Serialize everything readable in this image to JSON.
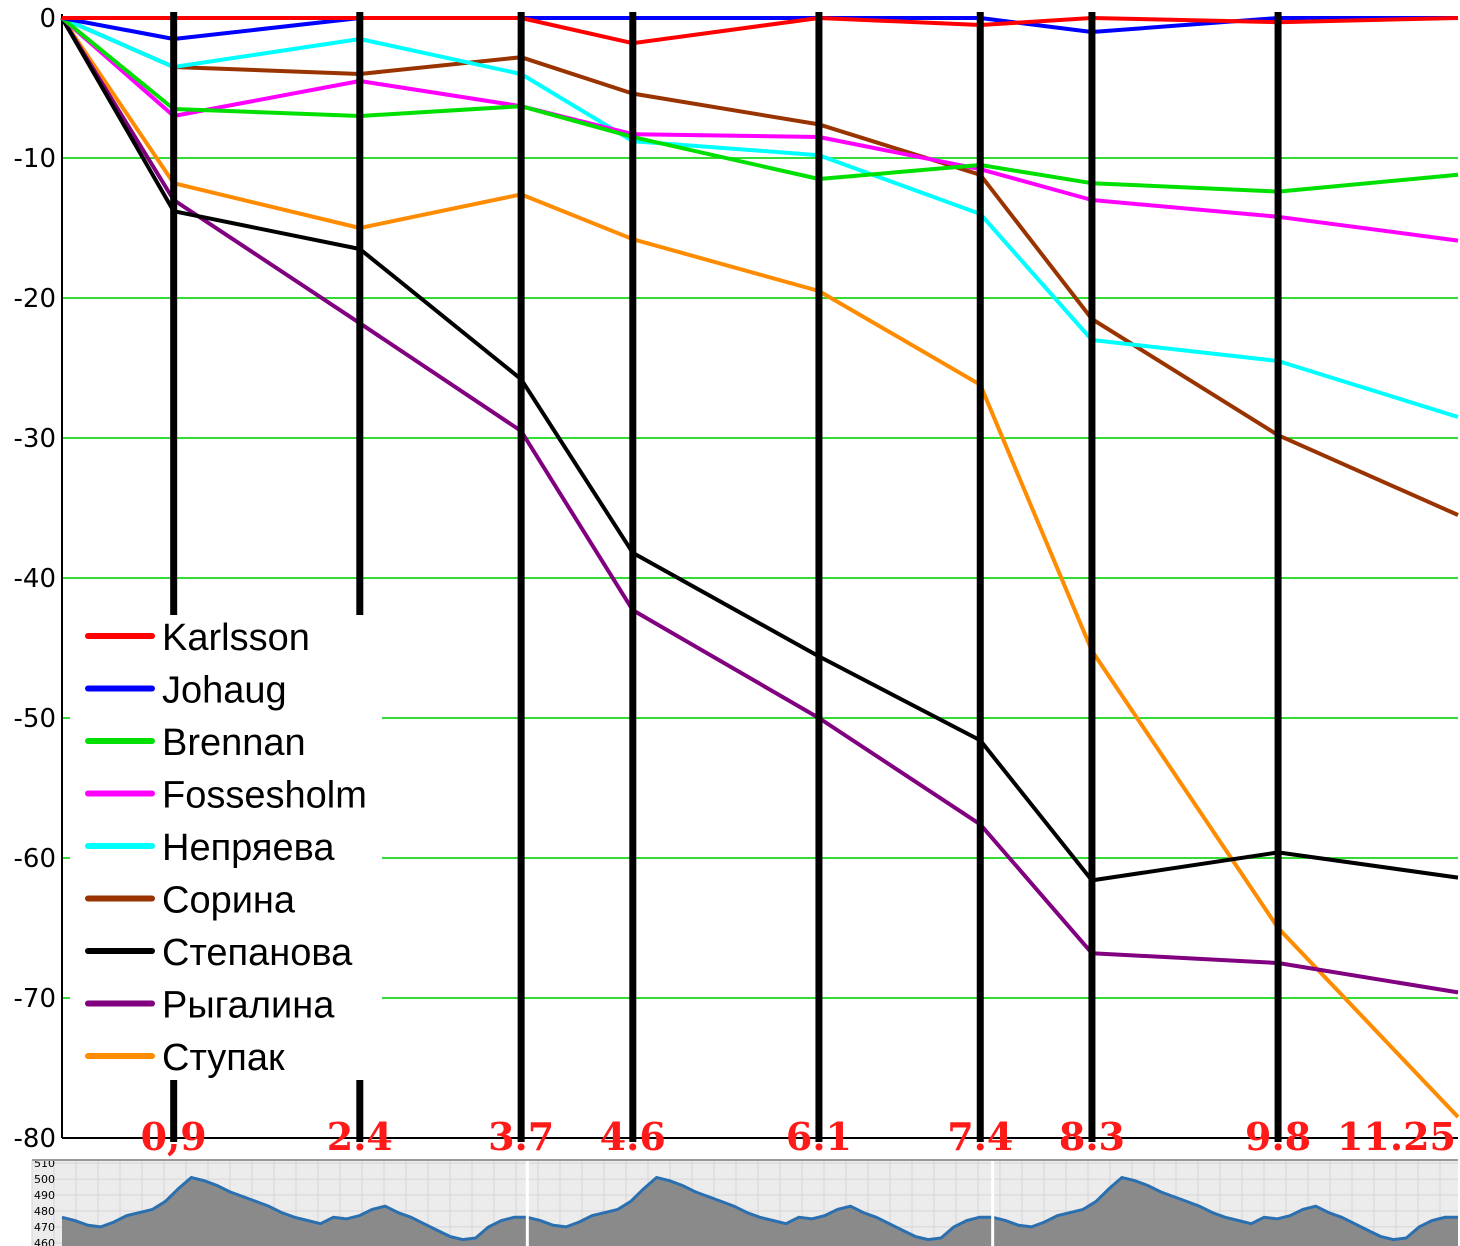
{
  "chart_data": {
    "type": "line",
    "title": "",
    "xlabel": "",
    "ylabel": "",
    "x": [
      0,
      0.9,
      2.4,
      3.7,
      4.6,
      6.1,
      7.4,
      8.3,
      9.8,
      11.25
    ],
    "x_tick_labels": [
      "0,9",
      "2.4",
      "3.7",
      "4.6",
      "6.1",
      "7.4",
      "8.3",
      "9.8",
      "11.25"
    ],
    "y_ticks": [
      0,
      -10,
      -20,
      -30,
      -40,
      -50,
      -60,
      -70,
      -80
    ],
    "y_tick_labels": [
      "0",
      "-10",
      "-20",
      "-30",
      "-40",
      "-50",
      "-60",
      "-70",
      "-80"
    ],
    "ylim": [
      -80,
      0
    ],
    "xlim": [
      0,
      11.25
    ],
    "grid": true,
    "legend_position": "bottom-left",
    "series": [
      {
        "name": "Karlsson",
        "color": "#ff0000",
        "values": [
          0,
          0,
          0,
          0,
          -1.8,
          0,
          -0.5,
          0,
          -0.3,
          0
        ]
      },
      {
        "name": "Johaug",
        "color": "#0000ff",
        "values": [
          0,
          -1.5,
          0,
          0,
          0,
          0,
          0,
          -1,
          0,
          0
        ]
      },
      {
        "name": "Brennan",
        "color": "#00e000",
        "values": [
          0,
          -6.5,
          -7,
          -6.3,
          -8.5,
          -11.5,
          -10.5,
          -11.8,
          -12.4,
          -11.2
        ]
      },
      {
        "name": "Fossesholm",
        "color": "#ff00ff",
        "values": [
          0,
          -7,
          -4.5,
          -6.3,
          -8.3,
          -8.5,
          -10.8,
          -13,
          -14.2,
          -15.9
        ]
      },
      {
        "name": "Непряева",
        "color": "#00ffff",
        "values": [
          0,
          -3.5,
          -1.5,
          -4,
          -8.8,
          -9.8,
          -14,
          -23,
          -24.5,
          -28.5
        ]
      },
      {
        "name": "Сорина",
        "color": "#993300",
        "values": [
          0,
          -3.5,
          -4,
          -2.8,
          -5.4,
          -7.6,
          -11.2,
          -21.5,
          -29.8,
          -35.5
        ]
      },
      {
        "name": "Степанова",
        "color": "#000000",
        "values": [
          0,
          -13.8,
          -16.5,
          -25.8,
          -38.2,
          -45.6,
          -51.6,
          -61.6,
          -59.6,
          -61.4
        ]
      },
      {
        "name": "Рыгалина",
        "color": "#800080",
        "values": [
          0,
          -13,
          -21.8,
          -29.5,
          -42.3,
          -50,
          -57.6,
          -66.8,
          -67.5,
          -69.6
        ]
      },
      {
        "name": "Ступак",
        "color": "#ff8c00",
        "values": [
          0,
          -11.8,
          -15,
          -12.6,
          -15.8,
          -19.5,
          -26.2,
          -45.2,
          -65,
          -78.5
        ]
      }
    ],
    "elevation_profile": {
      "y_tick_labels": [
        "510",
        "500",
        "490",
        "480",
        "470",
        "460"
      ],
      "y_ticks": [
        510,
        500,
        490,
        480,
        470,
        460
      ],
      "ylim": [
        458,
        512
      ],
      "laps": 3,
      "lap_values": [
        476,
        474,
        471,
        470,
        473,
        477,
        479,
        481,
        486,
        494,
        501,
        499,
        496,
        492,
        489,
        486,
        483,
        479,
        476,
        474,
        472,
        476,
        475,
        477,
        481,
        483,
        479,
        476,
        472,
        468,
        464,
        462,
        463,
        470,
        474,
        476,
        476
      ]
    }
  }
}
